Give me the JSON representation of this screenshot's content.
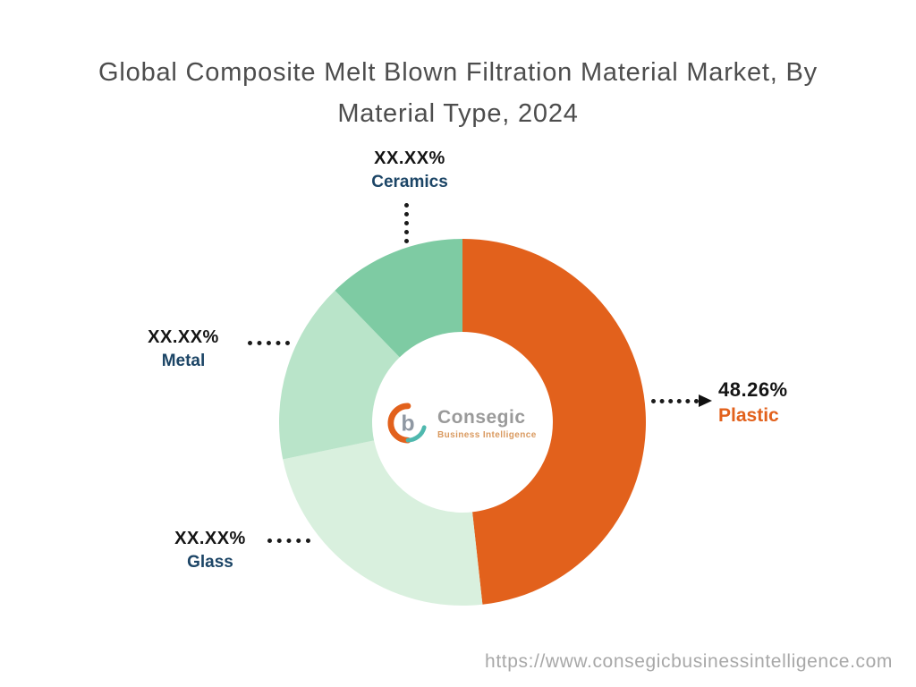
{
  "title": "Global Composite Melt Blown Filtration Material Market, By Material Type, 2024",
  "footer": {
    "url": "https://www.consegicbusinessintelligence.com"
  },
  "logo": {
    "name": "Consegic",
    "subtitle": "Business Intelligence"
  },
  "chart_data": {
    "type": "pie",
    "donut": true,
    "title": "Global Composite Melt Blown Filtration Material Market, By Material Type, 2024",
    "start_angle_deg": 0,
    "direction": "clockwise",
    "legend_position": "callout-labels",
    "segments": [
      {
        "label": "Plastic",
        "value_pct": 48.26,
        "display_value": "48.26%",
        "color": "#E2611C",
        "label_color": "#E2611C",
        "value_color": "#151515"
      },
      {
        "label": "Glass",
        "value_pct": 23.5,
        "display_value": "XX.XX%",
        "color": "#D9F0DE",
        "label_color": "#1C4566",
        "value_color": "#151515"
      },
      {
        "label": "Metal",
        "value_pct": 16.0,
        "display_value": "XX.XX%",
        "color": "#B9E4C9",
        "label_color": "#1C4566",
        "value_color": "#151515"
      },
      {
        "label": "Ceramics",
        "value_pct": 12.24,
        "display_value": "XX.XX%",
        "color": "#7ECBA3",
        "label_color": "#1C4566",
        "value_color": "#151515"
      }
    ]
  }
}
